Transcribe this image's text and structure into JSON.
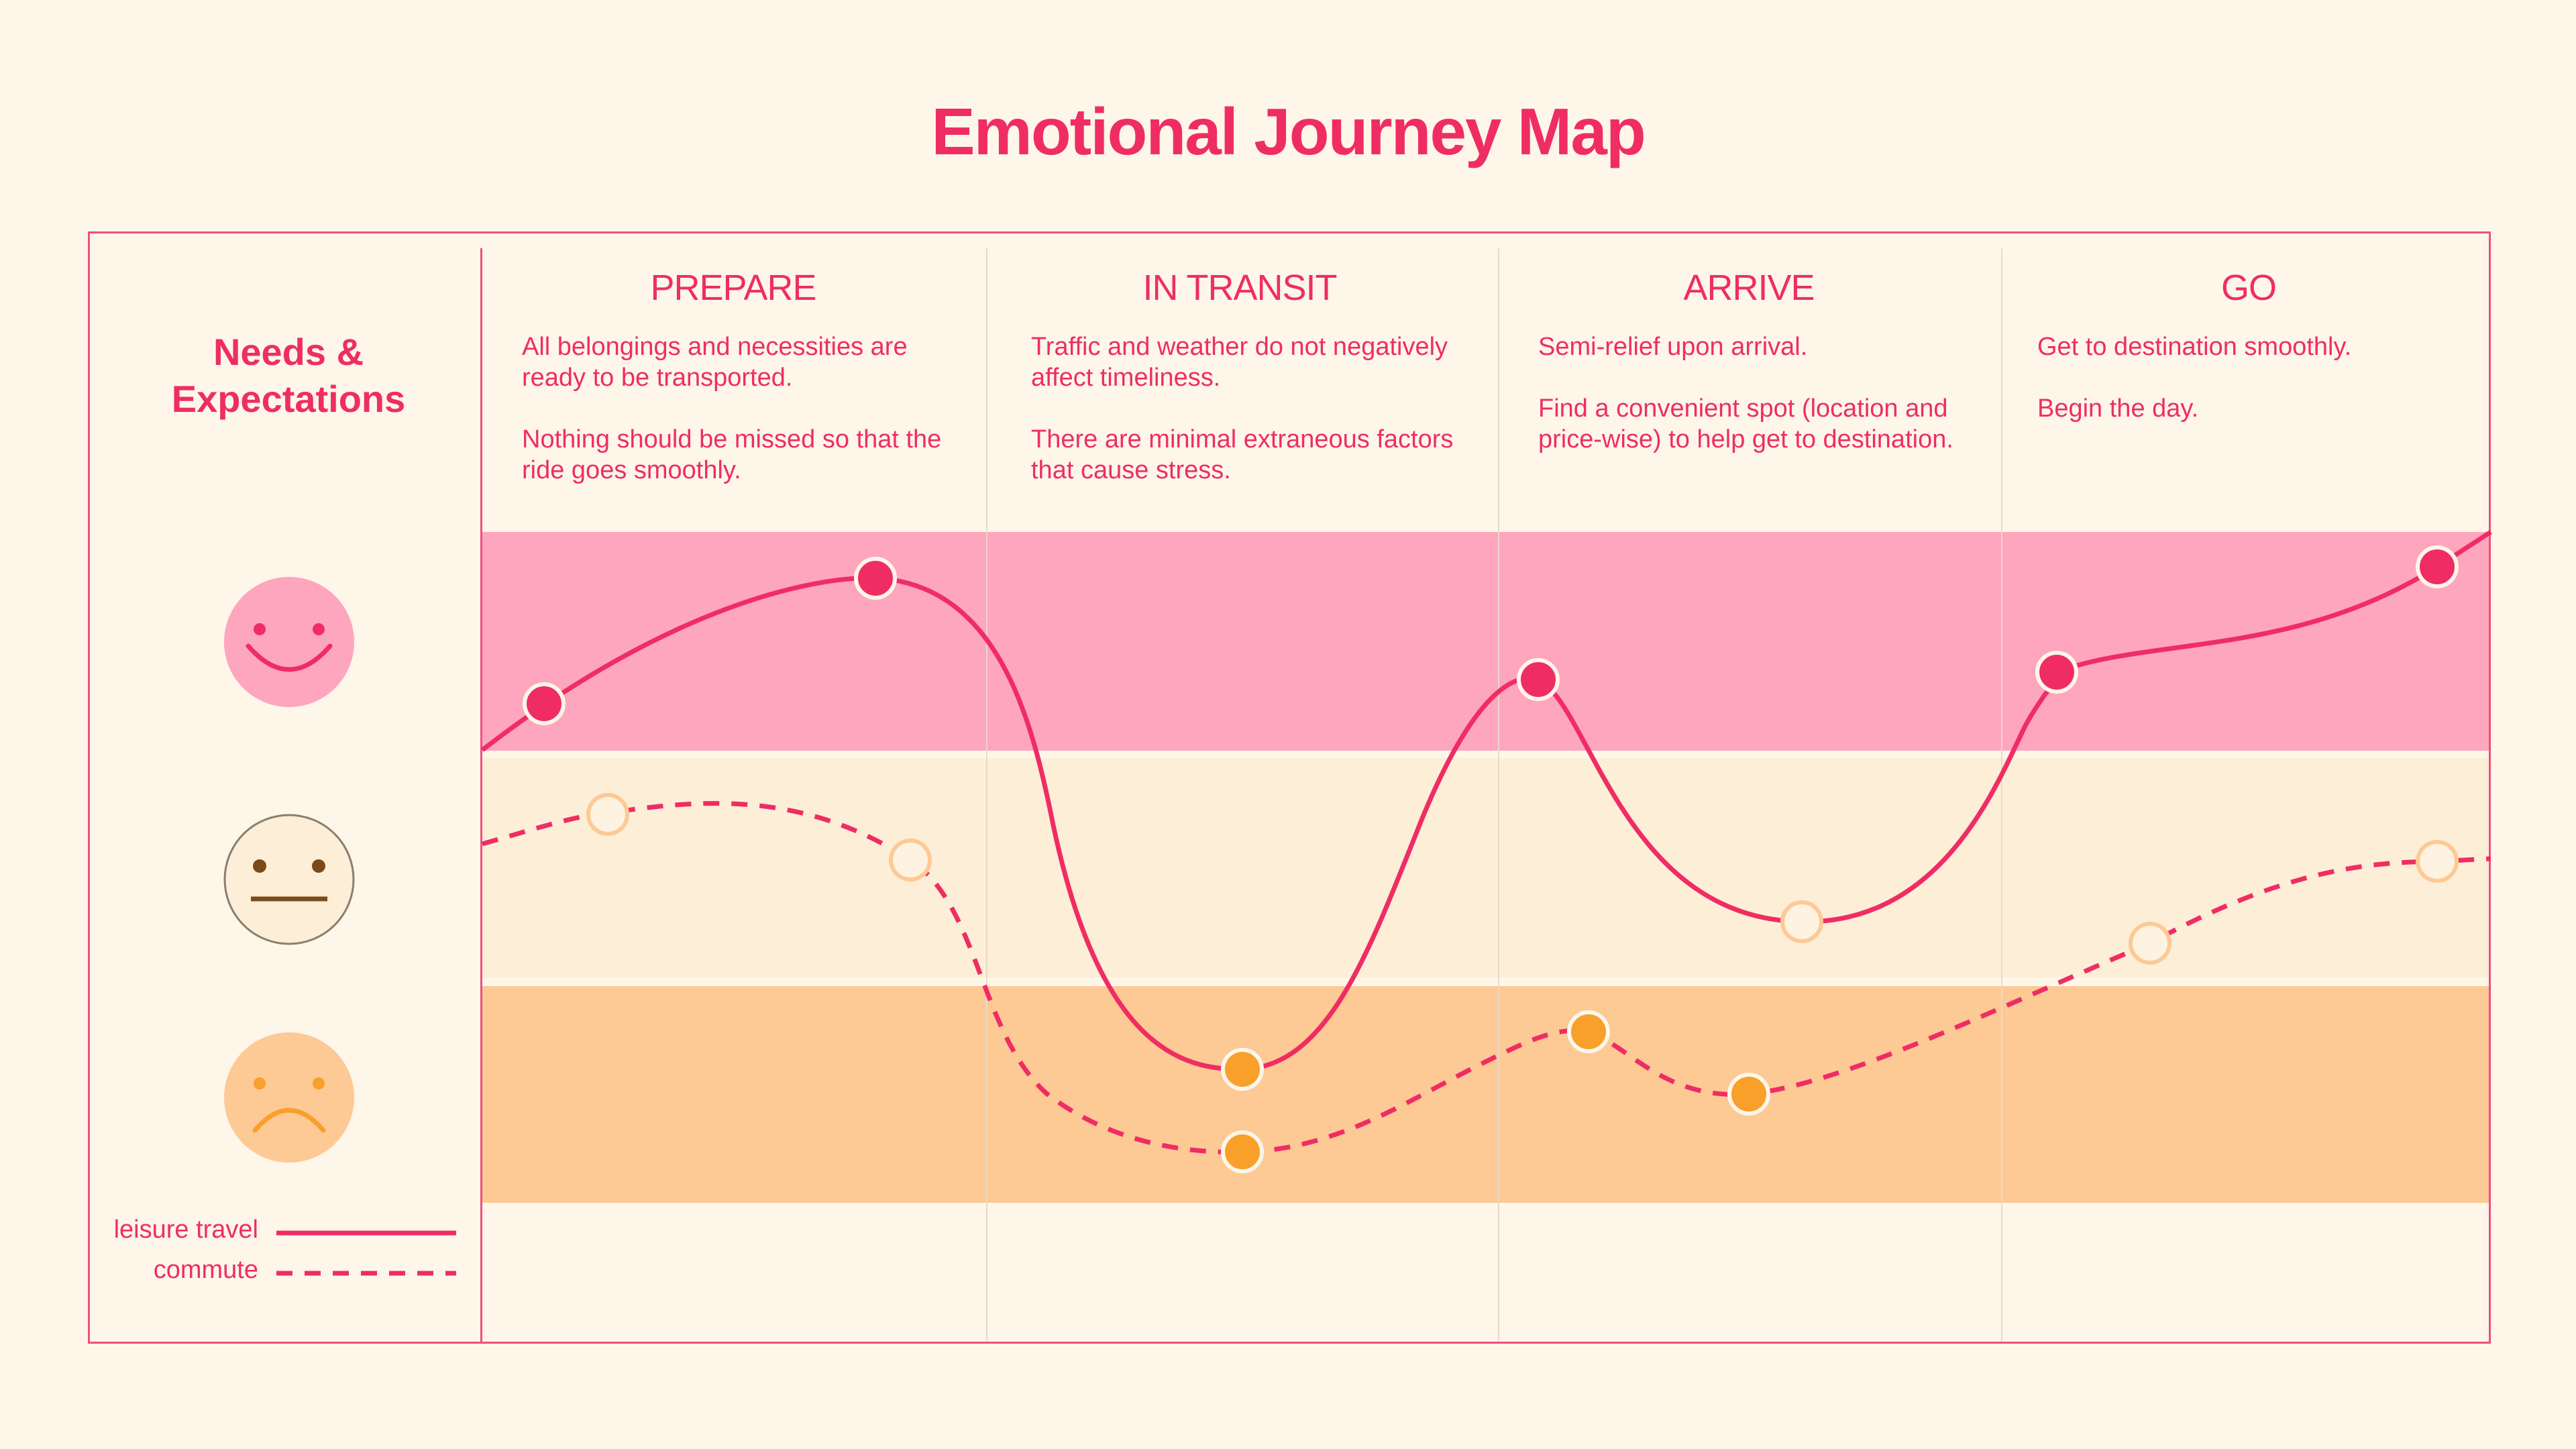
{
  "title": "Emotional Journey Map",
  "sidebar": {
    "heading_line1": "Needs &",
    "heading_line2": "Expectations",
    "faces": [
      "happy-face-icon",
      "neutral-face-icon",
      "sad-face-icon"
    ]
  },
  "phases": [
    {
      "label": "PREPARE",
      "paragraphs": [
        "All belongings and necessities are ready to be transported.",
        "Nothing should be missed so that the ride goes smoothly."
      ]
    },
    {
      "label": "IN TRANSIT",
      "paragraphs": [
        "Traffic and weather do not negatively affect timeliness.",
        "There are minimal extraneous factors that cause stress."
      ]
    },
    {
      "label": "ARRIVE",
      "paragraphs": [
        "Semi-relief upon arrival.",
        "Find a convenient spot (location and price-wise) to help get to destination."
      ]
    },
    {
      "label": "GO",
      "paragraphs": [
        "Get to destination smoothly.",
        "Begin the day."
      ]
    }
  ],
  "legend": {
    "leisure": "leisure travel",
    "commute": "commute"
  },
  "colors": {
    "accent": "#ef2d64",
    "happy_band": "#fea6be",
    "neutral_band": "#fdeed7",
    "sad_band": "#fdc995",
    "neutral_point": "#fdf3e0",
    "sad_point": "#f8a02a"
  }
}
